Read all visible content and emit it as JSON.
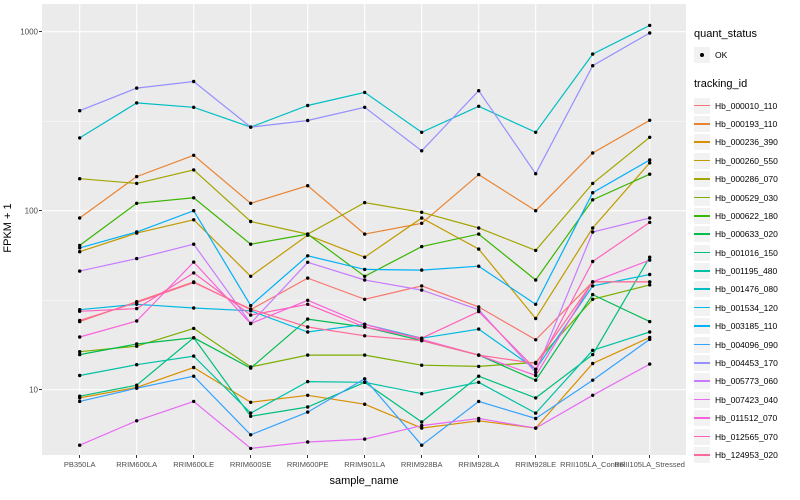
{
  "chart_data": {
    "type": "line",
    "xlabel": "sample_name",
    "ylabel": "FPKM + 1",
    "yscale": "log10",
    "ylim": [
      4,
      1100
    ],
    "grid": true,
    "legend_position": "right",
    "marker": {
      "shape": "point",
      "color": "#000000"
    },
    "y_major_ticks": [
      {
        "value": 1000,
        "label": "1000"
      },
      {
        "value": 100,
        "label": "100"
      },
      {
        "value": 10,
        "label": "10"
      }
    ],
    "y_minor_ticks": [
      31.6,
      316
    ],
    "categories": [
      "PB350LA",
      "RRIM600LA",
      "RRIM600LE",
      "RRIM600SE",
      "RRIM600PE",
      "RRIM901LA",
      "RRIM928BA",
      "RRIM928LA",
      "RRIM928LE",
      "RRII105LA_Control",
      "RRII105LA_Stressed"
    ],
    "quant_legend": {
      "title": "quant_status",
      "items": [
        "OK"
      ]
    },
    "series_legend_title": "tracking_id",
    "series": [
      {
        "tracking_id": "Hb_000010_110",
        "color": "#F8766D",
        "values": [
          24,
          31,
          40,
          28,
          42,
          32,
          38,
          29,
          19,
          40,
          40
        ]
      },
      {
        "tracking_id": "Hb_000193_110",
        "color": "#EA8331",
        "values": [
          91,
          155,
          204,
          110,
          138,
          74,
          85,
          159,
          100,
          210,
          320
        ]
      },
      {
        "tracking_id": "Hb_000236_390",
        "color": "#D89000",
        "values": [
          9,
          10.3,
          13.3,
          8.5,
          9.3,
          8.3,
          6.1,
          6.7,
          6.1,
          14,
          19.6
        ]
      },
      {
        "tracking_id": "Hb_000260_550",
        "color": "#C09B00",
        "values": [
          59,
          75,
          89,
          43,
          73,
          55,
          91,
          61,
          25,
          80,
          185
        ]
      },
      {
        "tracking_id": "Hb_000286_070",
        "color": "#A3A500",
        "values": [
          151,
          142,
          169,
          87,
          74,
          111,
          98,
          80,
          60,
          142,
          257
        ]
      },
      {
        "tracking_id": "Hb_000529_030",
        "color": "#7CAE00",
        "values": [
          16.3,
          17.5,
          22,
          13.4,
          15.6,
          15.6,
          13.7,
          13.5,
          14.2,
          32,
          38.5
        ]
      },
      {
        "tracking_id": "Hb_000622_180",
        "color": "#39B600",
        "values": [
          64,
          110,
          118,
          65,
          74,
          43,
          63,
          74,
          41,
          115,
          160
        ]
      },
      {
        "tracking_id": "Hb_000633_020",
        "color": "#00BB4E",
        "values": [
          15.7,
          18,
          19.5,
          13.2,
          24.8,
          22.4,
          18.8,
          15.6,
          11.3,
          34,
          24
        ]
      },
      {
        "tracking_id": "Hb_001016_150",
        "color": "#00BF7D",
        "values": [
          9.2,
          10.6,
          19.5,
          7.1,
          8,
          11,
          6.6,
          11.9,
          9,
          15.7,
          55
        ]
      },
      {
        "tracking_id": "Hb_001195_480",
        "color": "#00C1A3",
        "values": [
          12,
          13.8,
          15.4,
          7.4,
          11.1,
          11,
          9.5,
          11,
          7.4,
          16.6,
          21
        ]
      },
      {
        "tracking_id": "Hb_001476_080",
        "color": "#00BFC4",
        "values": [
          255,
          400,
          378,
          293,
          387,
          458,
          274,
          383,
          274,
          750,
          1084
        ]
      },
      {
        "tracking_id": "Hb_001534_120",
        "color": "#00BAE0",
        "values": [
          28,
          30,
          28.6,
          27.6,
          21,
          23.2,
          19.4,
          21.8,
          13,
          38,
          44
        ]
      },
      {
        "tracking_id": "Hb_003185_110",
        "color": "#00B0F6",
        "values": [
          62,
          76,
          100,
          29.5,
          56,
          47,
          46.6,
          49,
          30,
          126,
          192
        ]
      },
      {
        "tracking_id": "Hb_004096_090",
        "color": "#35A2FF",
        "values": [
          8.6,
          10.2,
          11.9,
          5.6,
          7.5,
          11.5,
          4.9,
          8.6,
          6.9,
          11.3,
          19.1
        ]
      },
      {
        "tracking_id": "Hb_004453_170",
        "color": "#9590FF",
        "values": [
          362,
          484,
          527,
          293,
          319,
          378,
          216,
          468,
          161,
          646,
          984
        ]
      },
      {
        "tracking_id": "Hb_005773_060",
        "color": "#C77CFF",
        "values": [
          46,
          54,
          65,
          23.5,
          51.5,
          41,
          36,
          28,
          12.5,
          76,
          91
        ]
      },
      {
        "tracking_id": "Hb_007423_040",
        "color": "#E76BF3",
        "values": [
          4.9,
          6.7,
          8.6,
          4.7,
          5.1,
          5.3,
          6.3,
          6.9,
          6.1,
          9.3,
          13.9
        ]
      },
      {
        "tracking_id": "Hb_011512_070",
        "color": "#FA62DB",
        "values": [
          19.7,
          24.2,
          51.6,
          23.4,
          31.6,
          23.2,
          19.1,
          15.6,
          12,
          40,
          53
        ]
      },
      {
        "tracking_id": "Hb_012565_070",
        "color": "#FF62BC",
        "values": [
          27.4,
          28.4,
          44.9,
          26.1,
          30,
          22.4,
          19.4,
          27.3,
          13,
          52,
          86
        ]
      },
      {
        "tracking_id": "Hb_124953_020",
        "color": "#FF6A98",
        "values": [
          24.4,
          30.7,
          39.7,
          28.2,
          22.4,
          20,
          18.8,
          15.6,
          14,
          40,
          40
        ]
      }
    ],
    "colors": {
      "panel_background": "#EBEBEB",
      "grid": "#FFFFFF",
      "tick_text": "#4D4D4D",
      "axis_text": "#000000",
      "legend_key": "#F2F2F2"
    }
  }
}
